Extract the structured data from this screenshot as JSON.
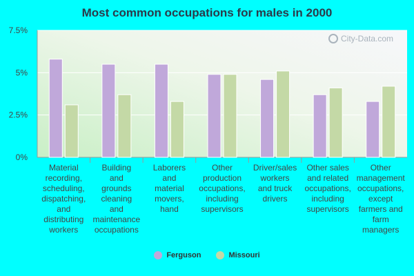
{
  "chart_data": {
    "type": "bar",
    "title": "Most common occupations for males in 2000",
    "categories": [
      [
        "Material",
        "recording,",
        "scheduling,",
        "dispatching,",
        "and",
        "distributing",
        "workers"
      ],
      [
        "Building",
        "and",
        "grounds",
        "cleaning",
        "and",
        "maintenance",
        "occupations"
      ],
      [
        "Laborers",
        "and",
        "material",
        "movers,",
        "hand"
      ],
      [
        "Other",
        "production",
        "occupations,",
        "including",
        "supervisors"
      ],
      [
        "Driver/sales",
        "workers",
        "and truck",
        "drivers"
      ],
      [
        "Other sales",
        "and related",
        "occupations,",
        "including",
        "supervisors"
      ],
      [
        "Other",
        "management",
        "occupations,",
        "except",
        "farmers and",
        "farm",
        "managers"
      ]
    ],
    "series": [
      {
        "name": "Ferguson",
        "color": "#c0a8da",
        "values": [
          5.8,
          5.5,
          5.5,
          4.9,
          4.6,
          3.7,
          3.3
        ]
      },
      {
        "name": "Missouri",
        "color": "#c4d9a6",
        "values": [
          3.1,
          3.7,
          3.3,
          4.9,
          5.1,
          4.1,
          4.2
        ]
      }
    ],
    "yticks": [
      0,
      2.5,
      5,
      7.5
    ],
    "ytick_labels": [
      "0%",
      "2.5%",
      "5%",
      "7.5%"
    ],
    "ylim": [
      0,
      7.5
    ],
    "xlabel": "",
    "ylabel": "",
    "legend_position": "bottom"
  },
  "watermark": "City-Data.com"
}
